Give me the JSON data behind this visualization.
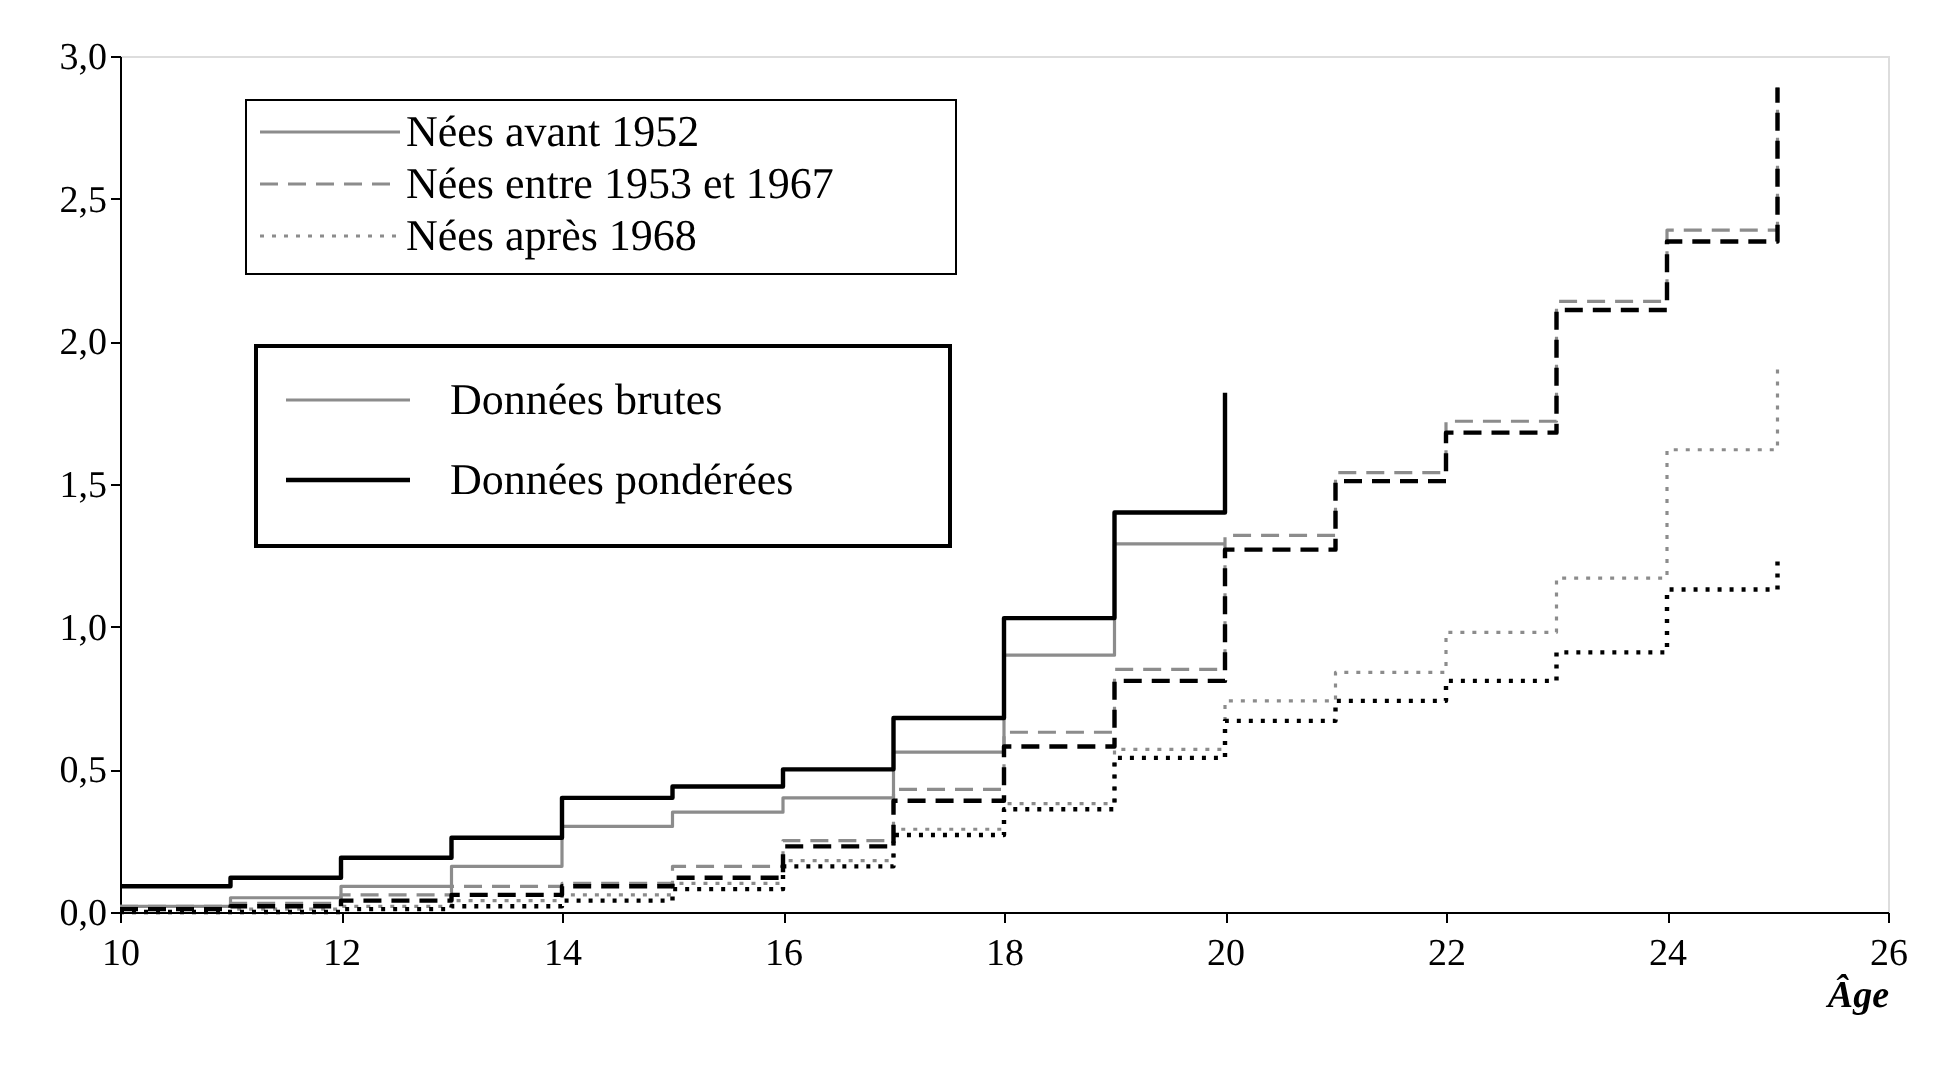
{
  "chart_data": {
    "type": "step",
    "xlabel": "Âge",
    "xlim": [
      10,
      26
    ],
    "xticks": [
      10,
      12,
      14,
      16,
      18,
      20,
      22,
      24,
      26
    ],
    "ylim": [
      0,
      3
    ],
    "yticks": [
      {
        "value": 0,
        "label": "0,0"
      },
      {
        "value": 0.5,
        "label": "0,5"
      },
      {
        "value": 1,
        "label": "1,0"
      },
      {
        "value": 1.5,
        "label": "1,5"
      },
      {
        "value": 2,
        "label": "2,0"
      },
      {
        "value": 2.5,
        "label": "2,5"
      },
      {
        "value": 3,
        "label": "3,0"
      }
    ],
    "grid": false,
    "legend": "top left",
    "annotations": [
      "Données brutes",
      "Données pondérées"
    ],
    "series": [
      {
        "name": "Nées avant 1952",
        "color": "#8c8c8c",
        "line_style": "solid",
        "x": [
          10,
          11,
          12,
          13,
          14,
          15,
          16,
          17,
          18,
          19,
          20
        ],
        "values": [
          0.02,
          0.05,
          0.09,
          0.16,
          0.3,
          0.35,
          0.4,
          0.56,
          0.9,
          1.29,
          1.29
        ]
      },
      {
        "name": "Nées entre 1953 et 1967",
        "color": "#8c8c8c",
        "line_style": "dashed",
        "x": [
          10,
          11,
          12,
          13,
          14,
          15,
          16,
          17,
          18,
          19,
          20,
          21,
          22,
          23,
          24,
          25
        ],
        "values": [
          0.02,
          0.03,
          0.06,
          0.09,
          0.1,
          0.16,
          0.25,
          0.43,
          0.63,
          0.85,
          1.32,
          1.54,
          1.72,
          2.14,
          2.39,
          2.89
        ]
      },
      {
        "name": "Nées après 1968",
        "color": "#8c8c8c",
        "line_style": "dotted",
        "x": [
          10,
          11,
          12,
          13,
          14,
          15,
          16,
          17,
          18,
          19,
          20,
          21,
          22,
          23,
          24,
          25
        ],
        "values": [
          0,
          0.01,
          0.02,
          0.04,
          0.06,
          0.1,
          0.18,
          0.29,
          0.38,
          0.57,
          0.74,
          0.84,
          0.98,
          1.17,
          1.62,
          1.91
        ]
      },
      {
        "color": "#000000",
        "line_style": "solid",
        "x": [
          10,
          11,
          12,
          13,
          14,
          15,
          16,
          17,
          18,
          19,
          20
        ],
        "values": [
          0.09,
          0.12,
          0.19,
          0.26,
          0.4,
          0.44,
          0.5,
          0.68,
          1.03,
          1.4,
          1.82
        ]
      },
      {
        "color": "#000000",
        "line_style": "dashed",
        "x": [
          10,
          11,
          12,
          13,
          14,
          15,
          16,
          17,
          18,
          19,
          20,
          21,
          22,
          23,
          24,
          25
        ],
        "values": [
          0.01,
          0.02,
          0.04,
          0.06,
          0.09,
          0.12,
          0.23,
          0.39,
          0.58,
          0.81,
          1.27,
          1.51,
          1.68,
          2.11,
          2.35,
          2.89
        ]
      },
      {
        "color": "#000000",
        "line_style": "dotted",
        "x": [
          10,
          11,
          12,
          13,
          14,
          15,
          16,
          17,
          18,
          19,
          20,
          21,
          22,
          23,
          24,
          25
        ],
        "values": [
          0,
          0,
          0.01,
          0.02,
          0.04,
          0.08,
          0.16,
          0.27,
          0.36,
          0.54,
          0.67,
          0.74,
          0.81,
          0.91,
          1.13,
          1.24
        ]
      }
    ]
  }
}
